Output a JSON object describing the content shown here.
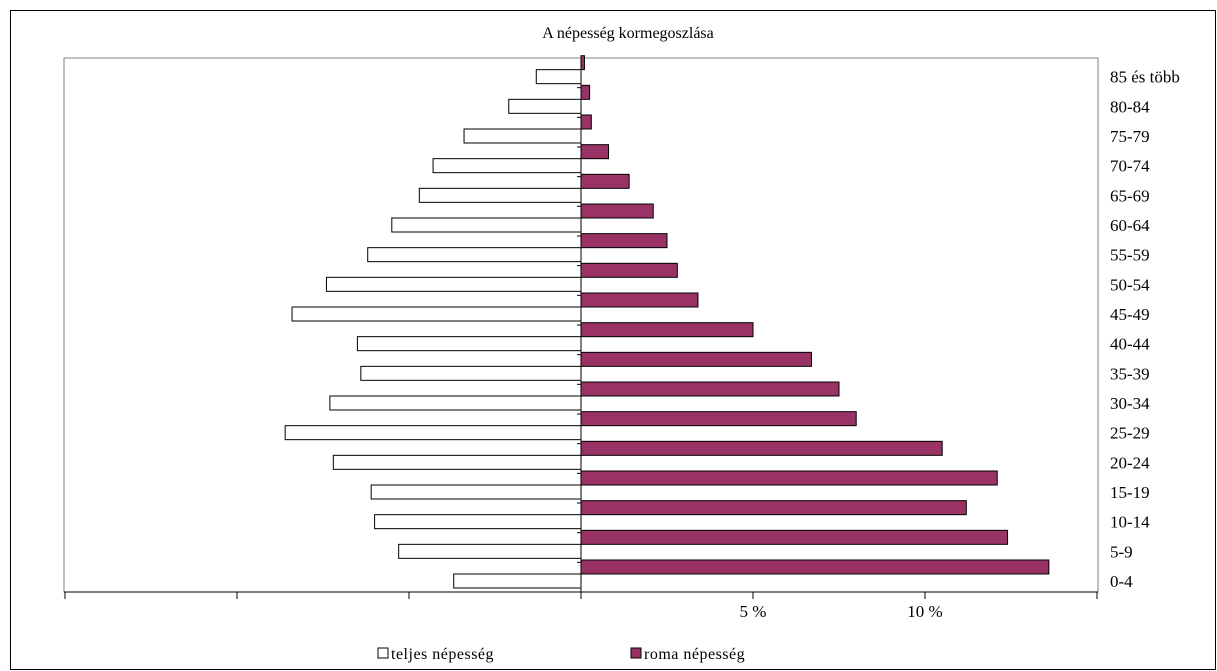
{
  "chart_data": {
    "type": "bar",
    "orientation": "horizontal",
    "title": "A népesség kormegoszlása",
    "categories": [
      "0-4",
      "5-9",
      "10-14",
      "15-19",
      "20-24",
      "25-29",
      "30-34",
      "35-39",
      "40-44",
      "45-49",
      "50-54",
      "55-59",
      "60-64",
      "65-69",
      "70-74",
      "75-79",
      "80-84",
      "85 és több"
    ],
    "series": [
      {
        "name": "teljes népesség",
        "side": "left",
        "color": "#ffffff",
        "values": [
          3.7,
          5.3,
          6.0,
          6.1,
          7.2,
          8.6,
          7.3,
          6.4,
          6.5,
          8.4,
          7.4,
          6.2,
          5.5,
          4.7,
          4.3,
          3.4,
          2.1,
          1.3
        ]
      },
      {
        "name": "roma népesség",
        "side": "right",
        "color": "#993366",
        "values": [
          13.6,
          12.4,
          11.2,
          12.1,
          10.5,
          8.0,
          7.5,
          6.7,
          5.0,
          3.4,
          2.8,
          2.5,
          2.1,
          1.4,
          0.8,
          0.3,
          0.25,
          0.1
        ]
      }
    ],
    "x_tick_labels": [
      {
        "value": 5,
        "label": "5 %"
      },
      {
        "value": 10,
        "label": "10 %"
      }
    ],
    "xlim": [
      -15,
      15
    ],
    "legend_position": "bottom",
    "grid": false
  }
}
